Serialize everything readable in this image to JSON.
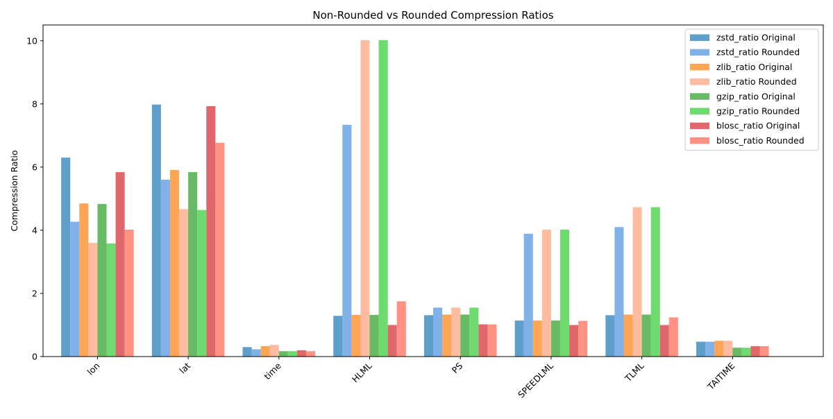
{
  "chart_data": {
    "type": "bar",
    "title": "Non-Rounded vs Rounded Compression Ratios",
    "xlabel": "",
    "ylabel": "Compression Ratio",
    "ylim": [
      0,
      10.5
    ],
    "yticks": [
      0,
      2,
      4,
      6,
      8,
      10
    ],
    "grid": false,
    "legend_position": "top-right",
    "categories": [
      "lon",
      "lat",
      "time",
      "HLML",
      "PS",
      "SPEEDLML",
      "TLML",
      "TAITIME"
    ],
    "series": [
      {
        "name": "zstd_ratio Original",
        "color": "#5f9fcb",
        "values": [
          6.3,
          7.98,
          0.3,
          1.29,
          1.31,
          1.14,
          1.31,
          0.47
        ]
      },
      {
        "name": "zstd_ratio Rounded",
        "color": "#80b1e7",
        "values": [
          4.27,
          5.6,
          0.23,
          7.34,
          1.55,
          3.89,
          4.1,
          0.47
        ]
      },
      {
        "name": "zlib_ratio Original",
        "color": "#ffa556",
        "values": [
          4.85,
          5.91,
          0.33,
          1.32,
          1.33,
          1.14,
          1.33,
          0.5
        ]
      },
      {
        "name": "zlib_ratio Rounded",
        "color": "#ffbca0",
        "values": [
          3.6,
          4.67,
          0.37,
          10.02,
          1.55,
          4.02,
          4.73,
          0.5
        ]
      },
      {
        "name": "gzip_ratio Original",
        "color": "#68ba65",
        "values": [
          4.83,
          5.84,
          0.17,
          1.32,
          1.33,
          1.14,
          1.33,
          0.28
        ]
      },
      {
        "name": "gzip_ratio Rounded",
        "color": "#6edb6e",
        "values": [
          3.58,
          4.64,
          0.17,
          10.02,
          1.55,
          4.02,
          4.73,
          0.28
        ]
      },
      {
        "name": "blosc_ratio Original",
        "color": "#e0676c",
        "values": [
          5.84,
          7.93,
          0.2,
          1.0,
          1.02,
          1.0,
          1.0,
          0.33
        ]
      },
      {
        "name": "blosc_ratio Rounded",
        "color": "#ff9282",
        "values": [
          4.02,
          6.77,
          0.17,
          1.75,
          1.02,
          1.13,
          1.24,
          0.33
        ]
      }
    ]
  }
}
